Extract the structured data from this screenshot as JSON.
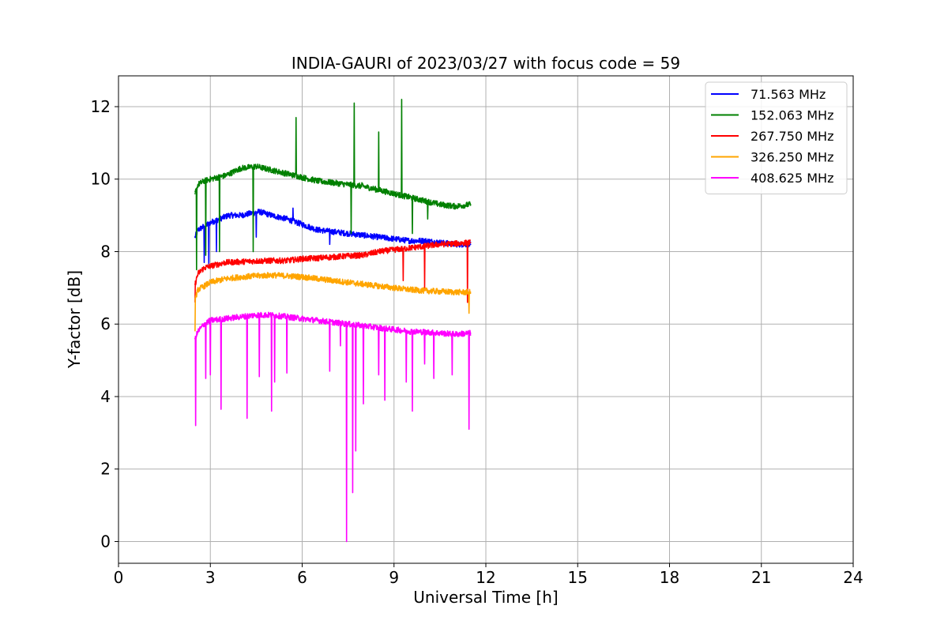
{
  "chart_data": {
    "type": "line",
    "title": "INDIA-GAURI of 2023/03/27 with focus code = 59",
    "xlabel": "Universal Time [h]",
    "ylabel": "Y-factor [dB]",
    "xlim": [
      0,
      24
    ],
    "ylim": [
      -0.6,
      12.85
    ],
    "xticks": [
      0,
      3,
      6,
      9,
      12,
      15,
      18,
      21,
      24
    ],
    "xtick_labels": [
      "0",
      "3",
      "6",
      "9",
      "12",
      "15",
      "18",
      "21",
      "24"
    ],
    "yticks": [
      0,
      2,
      4,
      6,
      8,
      10,
      12
    ],
    "ytick_labels": [
      "0",
      "2",
      "4",
      "6",
      "8",
      "10",
      "12"
    ],
    "grid": true,
    "legend_position": "top-right",
    "series": [
      {
        "name": " 71.563 MHz",
        "color": "#0000ff",
        "x": [
          2.5,
          2.6,
          2.8,
          3.0,
          3.3,
          3.6,
          4.0,
          4.3,
          4.6,
          5.0,
          5.5,
          6.0,
          6.5,
          7.0,
          7.5,
          8.0,
          8.5,
          9.0,
          9.5,
          10.0,
          10.5,
          11.0,
          11.5
        ],
        "values": [
          8.4,
          8.6,
          8.7,
          8.8,
          8.9,
          9.0,
          9.0,
          9.05,
          9.1,
          9.0,
          8.9,
          8.75,
          8.6,
          8.55,
          8.5,
          8.45,
          8.4,
          8.35,
          8.3,
          8.3,
          8.25,
          8.2,
          8.2
        ],
        "spikes": [
          [
            2.8,
            7.7
          ],
          [
            2.95,
            7.6
          ],
          [
            3.2,
            8.0
          ],
          [
            4.5,
            8.4
          ],
          [
            5.7,
            9.2
          ],
          [
            6.9,
            8.2
          ]
        ]
      },
      {
        "name": "152.063 MHz",
        "color": "#008000",
        "x": [
          2.5,
          2.6,
          2.8,
          3.0,
          3.5,
          4.0,
          4.5,
          5.0,
          5.5,
          6.0,
          6.5,
          7.0,
          7.5,
          8.0,
          8.5,
          9.0,
          9.5,
          10.0,
          10.5,
          11.0,
          11.5
        ],
        "values": [
          9.6,
          9.85,
          9.95,
          10.0,
          10.1,
          10.3,
          10.35,
          10.25,
          10.15,
          10.05,
          9.95,
          9.9,
          9.85,
          9.8,
          9.7,
          9.6,
          9.5,
          9.4,
          9.3,
          9.25,
          9.3
        ],
        "spikes": [
          [
            2.55,
            7.5
          ],
          [
            2.85,
            7.9
          ],
          [
            3.3,
            8.0
          ],
          [
            4.4,
            8.0
          ],
          [
            5.8,
            11.7
          ],
          [
            7.6,
            8.5
          ],
          [
            7.7,
            12.1
          ],
          [
            7.95,
            9.9
          ],
          [
            8.5,
            11.3
          ],
          [
            9.25,
            12.2
          ],
          [
            9.6,
            8.5
          ],
          [
            10.1,
            8.9
          ]
        ]
      },
      {
        "name": "267.750 MHz",
        "color": "#ff0000",
        "x": [
          2.5,
          2.6,
          2.8,
          3.0,
          3.5,
          4.0,
          4.5,
          5.0,
          5.5,
          6.0,
          6.5,
          7.0,
          7.5,
          8.0,
          8.5,
          9.0,
          9.5,
          10.0,
          10.5,
          11.0,
          11.5
        ],
        "values": [
          7.1,
          7.4,
          7.55,
          7.6,
          7.7,
          7.72,
          7.74,
          7.75,
          7.75,
          7.8,
          7.82,
          7.85,
          7.88,
          7.9,
          8.0,
          8.05,
          8.1,
          8.15,
          8.2,
          8.22,
          8.25
        ],
        "spikes": [
          [
            2.5,
            6.6
          ],
          [
            9.3,
            7.2
          ],
          [
            10.0,
            7.0
          ],
          [
            11.4,
            6.6
          ]
        ]
      },
      {
        "name": "326.250 MHz",
        "color": "#ffa500",
        "x": [
          2.5,
          2.6,
          2.8,
          3.0,
          3.5,
          4.0,
          4.5,
          5.0,
          5.5,
          6.0,
          6.5,
          7.0,
          7.5,
          8.0,
          8.5,
          9.0,
          9.5,
          10.0,
          10.5,
          11.0,
          11.5
        ],
        "values": [
          6.7,
          6.95,
          7.05,
          7.15,
          7.25,
          7.3,
          7.33,
          7.35,
          7.33,
          7.3,
          7.25,
          7.2,
          7.15,
          7.1,
          7.05,
          7.0,
          6.95,
          6.92,
          6.9,
          6.88,
          6.88
        ],
        "spikes": [
          [
            2.5,
            5.8
          ],
          [
            11.45,
            6.3
          ]
        ]
      },
      {
        "name": "408.625 MHz",
        "color": "#ff00ff",
        "x": [
          2.5,
          2.6,
          2.8,
          3.0,
          3.5,
          4.0,
          4.5,
          5.0,
          5.5,
          6.0,
          6.5,
          7.0,
          7.5,
          8.0,
          8.5,
          9.0,
          9.5,
          10.0,
          10.5,
          11.0,
          11.5
        ],
        "values": [
          5.6,
          5.8,
          6.0,
          6.1,
          6.15,
          6.2,
          6.25,
          6.25,
          6.2,
          6.15,
          6.1,
          6.05,
          6.0,
          5.95,
          5.9,
          5.85,
          5.8,
          5.78,
          5.75,
          5.72,
          5.75
        ],
        "spikes": [
          [
            2.52,
            3.2
          ],
          [
            2.85,
            4.5
          ],
          [
            3.0,
            4.6
          ],
          [
            3.35,
            3.65
          ],
          [
            4.2,
            3.4
          ],
          [
            4.6,
            4.55
          ],
          [
            5.0,
            3.6
          ],
          [
            5.1,
            4.4
          ],
          [
            5.5,
            4.65
          ],
          [
            6.9,
            4.7
          ],
          [
            7.25,
            5.4
          ],
          [
            7.45,
            0.0
          ],
          [
            7.65,
            1.35
          ],
          [
            7.75,
            2.5
          ],
          [
            8.0,
            3.8
          ],
          [
            8.5,
            4.6
          ],
          [
            8.7,
            3.9
          ],
          [
            9.4,
            4.4
          ],
          [
            9.6,
            3.6
          ],
          [
            10.0,
            4.9
          ],
          [
            10.3,
            4.5
          ],
          [
            10.9,
            4.6
          ],
          [
            11.45,
            3.1
          ]
        ]
      }
    ]
  }
}
